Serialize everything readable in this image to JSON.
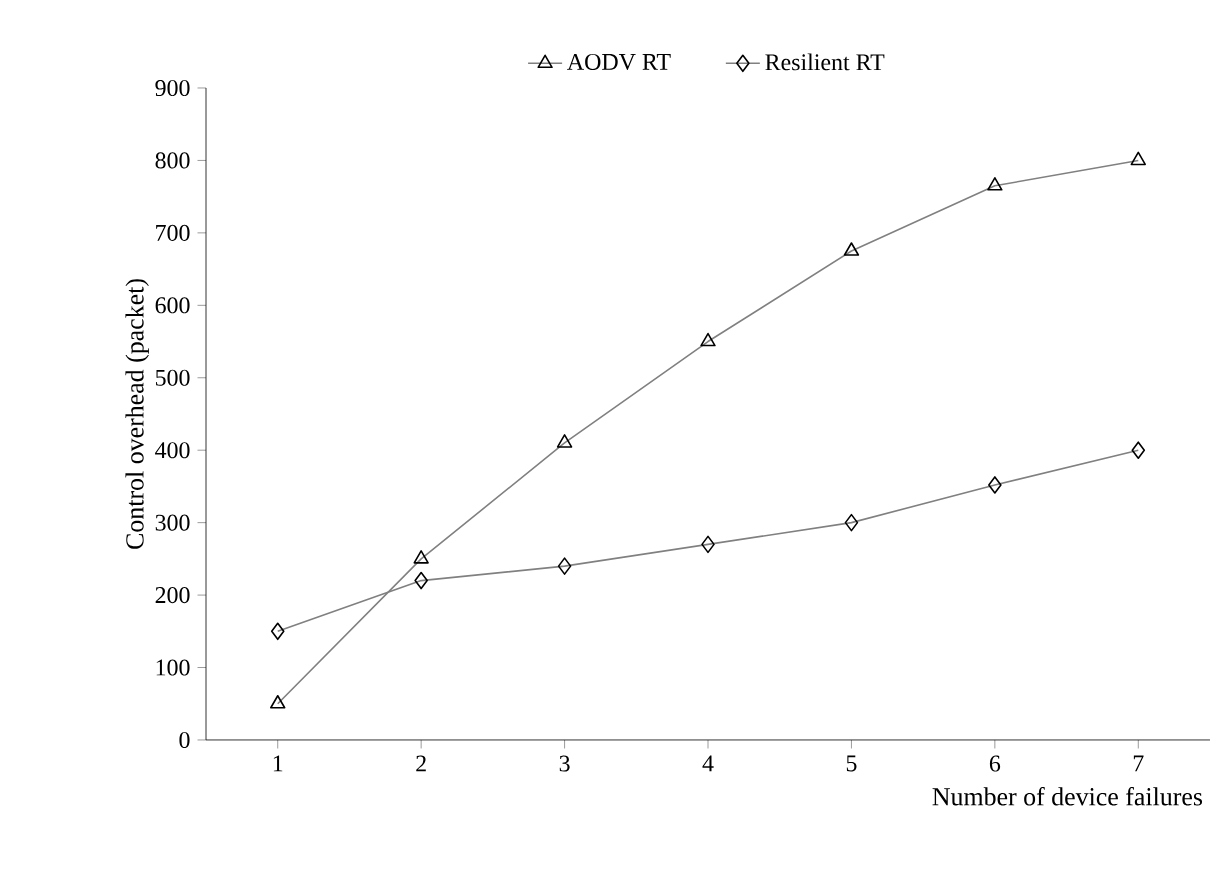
{
  "chart_data": {
    "type": "line",
    "xlabel": "Number  of device failures",
    "ylabel": "Control overhead (packet)",
    "categories": [
      "1",
      "2",
      "3",
      "4",
      "5",
      "6",
      "7"
    ],
    "series": [
      {
        "name": "AODV RT",
        "color": "#808080",
        "marker": "triangle",
        "values": [
          50,
          250,
          410,
          550,
          675,
          765,
          800
        ]
      },
      {
        "name": "Resilient RT",
        "color": "#808080",
        "marker": "diamond",
        "values": [
          150,
          220,
          240,
          270,
          300,
          352,
          400
        ]
      }
    ],
    "ylim": [
      0,
      900
    ],
    "yticks": [
      0,
      100,
      200,
      300,
      400,
      500,
      600,
      700,
      800,
      900
    ],
    "grid": false,
    "legend": "top",
    "line_style": "solid"
  }
}
